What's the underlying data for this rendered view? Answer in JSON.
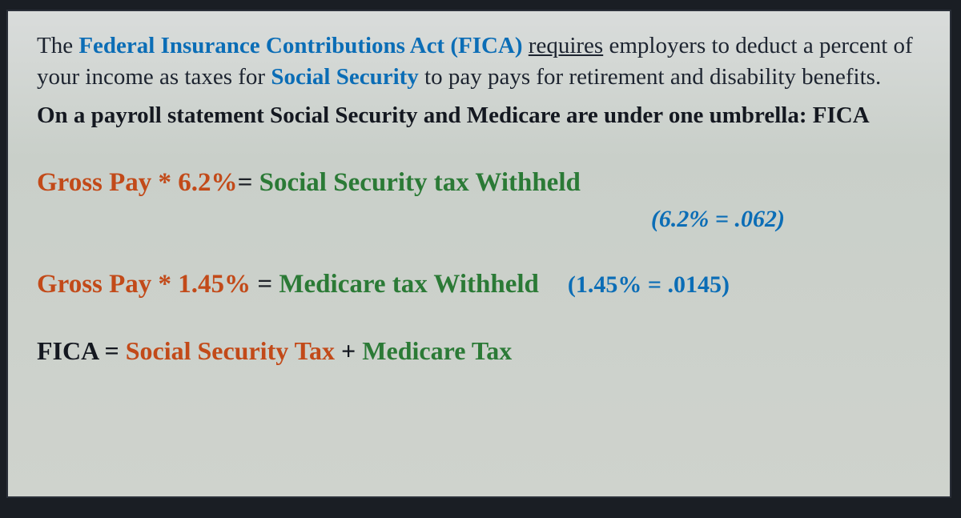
{
  "colors": {
    "page_bg": "#1a1e24",
    "panel_bg_top": "#d9dcdb",
    "panel_bg_bottom": "#cfd3cd",
    "border": "#2a2f38",
    "body_text": "#1d2430",
    "blue": "#0b6db6",
    "orange": "#c24a19",
    "green": "#2b7a36",
    "black": "#141820"
  },
  "typography": {
    "family": "Georgia, Times New Roman, serif",
    "body_size_pt": 22,
    "formula_size_pt": 25,
    "conversion_size_pt": 23
  },
  "para1": {
    "seg1": "The ",
    "seg2_blue_bold": "Federal Insurance Contributions Act (FICA)",
    "seg3": " ",
    "seg4_underline": "requires",
    "seg5": " employers to deduct a percent of your income as taxes for ",
    "seg6_blue_bold": "Social Security",
    "seg7": " to pay pays for retirement and disability benefits."
  },
  "para2": "On a payroll statement Social Security and Medicare are under one umbrella: FICA",
  "formula1": {
    "lhs": "Gross Pay * 6.2%",
    "eq": "= ",
    "rhs": "Social Security tax Withheld"
  },
  "conversion1": "(6.2% = .062)",
  "formula2": {
    "lhs": "Gross Pay * 1.45% ",
    "eq": "= ",
    "rhs": "Medicare tax Withheld"
  },
  "conversion2": "(1.45% = .0145)",
  "formula3": {
    "lhs": "FICA ",
    "eq": "= ",
    "term1": "Social Security Tax",
    "plus": " + ",
    "term2": "Medicare Tax"
  }
}
